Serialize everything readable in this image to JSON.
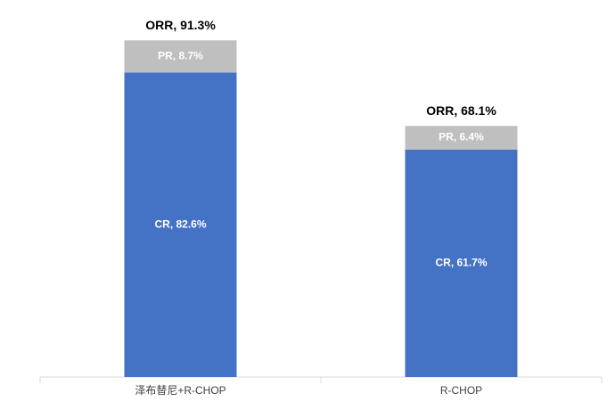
{
  "chart_data": {
    "type": "stacked_bar",
    "categories": [
      "泽布替尼+R-CHOP",
      "R-CHOP"
    ],
    "series": [
      {
        "name": "CR",
        "color": "#4472c4",
        "values": [
          82.6,
          61.7
        ],
        "value_labels": [
          "CR, 82.6%",
          "CR, 61.7%"
        ]
      },
      {
        "name": "PR",
        "color": "#bfbfbf",
        "values": [
          8.7,
          6.4
        ],
        "value_labels": [
          "PR, 8.7%",
          "PR, 6.4%"
        ]
      }
    ],
    "totals": [
      91.3,
      68.1
    ],
    "total_labels": [
      "ORR, 91.3%",
      "ORR, 68.1%"
    ],
    "ylim": [
      0,
      95
    ]
  }
}
